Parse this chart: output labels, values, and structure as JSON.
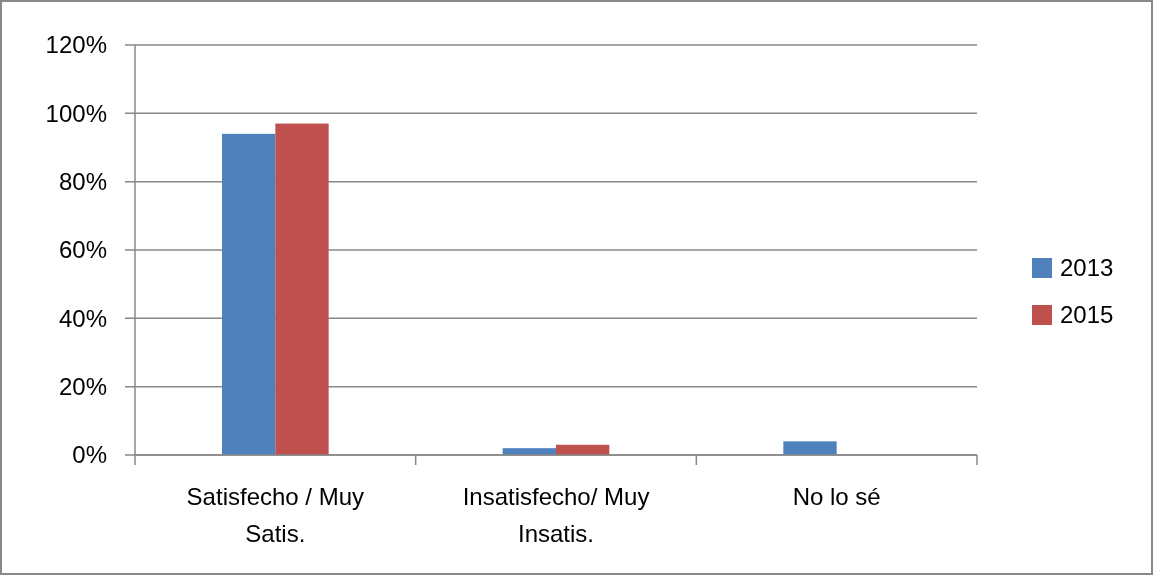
{
  "chart_data": {
    "type": "bar",
    "categories": [
      "Satisfecho / Muy Satis.",
      "Insatisfecho/ Muy Insatis.",
      "No lo sé"
    ],
    "series": [
      {
        "name": "2013",
        "color": "#4f81bd",
        "values": [
          94,
          2,
          4
        ]
      },
      {
        "name": "2015",
        "color": "#c0504d",
        "values": [
          97,
          3,
          0
        ]
      }
    ],
    "ylim": [
      0,
      120
    ],
    "yticks": [
      {
        "value": 0,
        "label": "0%"
      },
      {
        "value": 20,
        "label": "20%"
      },
      {
        "value": 40,
        "label": "40%"
      },
      {
        "value": 60,
        "label": "60%"
      },
      {
        "value": 80,
        "label": "80%"
      },
      {
        "value": 100,
        "label": "100%"
      },
      {
        "value": 120,
        "label": "120%"
      }
    ],
    "grid": "y",
    "legend": "right"
  }
}
